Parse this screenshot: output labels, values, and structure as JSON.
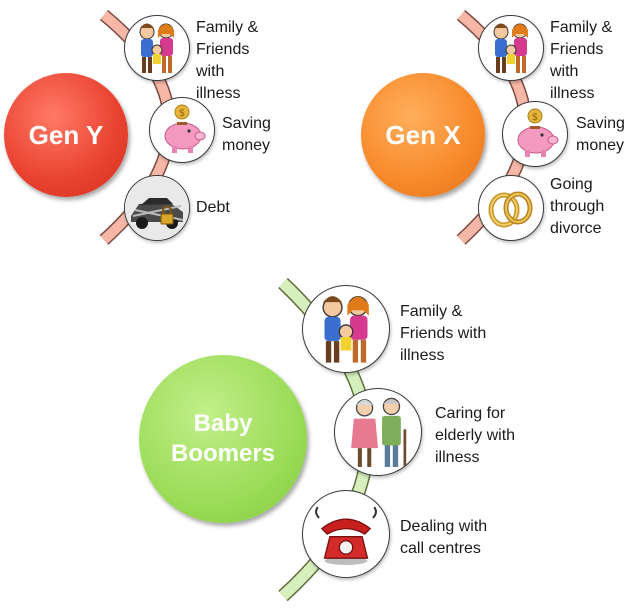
{
  "groups": [
    {
      "name": "Gen Y",
      "color": "#ee4b3a",
      "items": [
        {
          "icon": "family-icon",
          "label": "Family &\nFriends\nwith\nillness"
        },
        {
          "icon": "piggy-bank-icon",
          "label": "Saving\nmoney"
        },
        {
          "icon": "locked-car-icon",
          "label": "Debt"
        }
      ]
    },
    {
      "name": "Gen X",
      "color": "#f58a2b",
      "items": [
        {
          "icon": "family-icon",
          "label": "Family &\nFriends\nwith\nillness"
        },
        {
          "icon": "piggy-bank-icon",
          "label": "Saving\nmoney"
        },
        {
          "icon": "wedding-rings-icon",
          "label": "Going\nthrough\ndivorce"
        }
      ]
    },
    {
      "name": "Baby\nBoomers",
      "color": "#9ddc5a",
      "items": [
        {
          "icon": "family-icon",
          "label": "Family &\nFriends with\nillness"
        },
        {
          "icon": "elderly-couple-icon",
          "label": "Caring for\nelderly with\nillness"
        },
        {
          "icon": "telephone-icon",
          "label": "Dealing with\ncall centres"
        }
      ]
    }
  ]
}
